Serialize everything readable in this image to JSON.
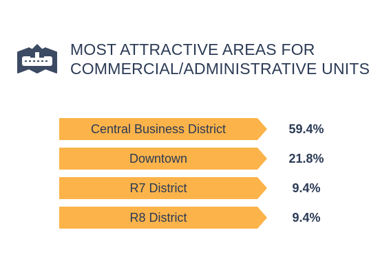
{
  "header": {
    "title_line1": "MOST ATTRACTIVE AREAS FOR",
    "title_line2": "COMMERCIAL/ADMINISTRATIVE UNITS",
    "icon": "house-map-icon"
  },
  "colors": {
    "bar": "#FBB34A",
    "text": "#2B3A55",
    "icon_fill": "#3C4A63"
  },
  "chart_data": {
    "type": "bar",
    "orientation": "horizontal",
    "categories": [
      "Central Business District",
      "Downtown",
      "R7 District",
      "R8 District"
    ],
    "values": [
      59.4,
      21.8,
      9.4,
      9.4
    ],
    "value_labels": [
      "59.4%",
      "21.8%",
      "9.4%",
      "9.4%"
    ],
    "unit": "%",
    "title": "MOST ATTRACTIVE AREAS FOR COMMERCIAL/ADMINISTRATIVE UNITS",
    "xlabel": "",
    "ylabel": "",
    "grid": false,
    "legend": "none"
  }
}
